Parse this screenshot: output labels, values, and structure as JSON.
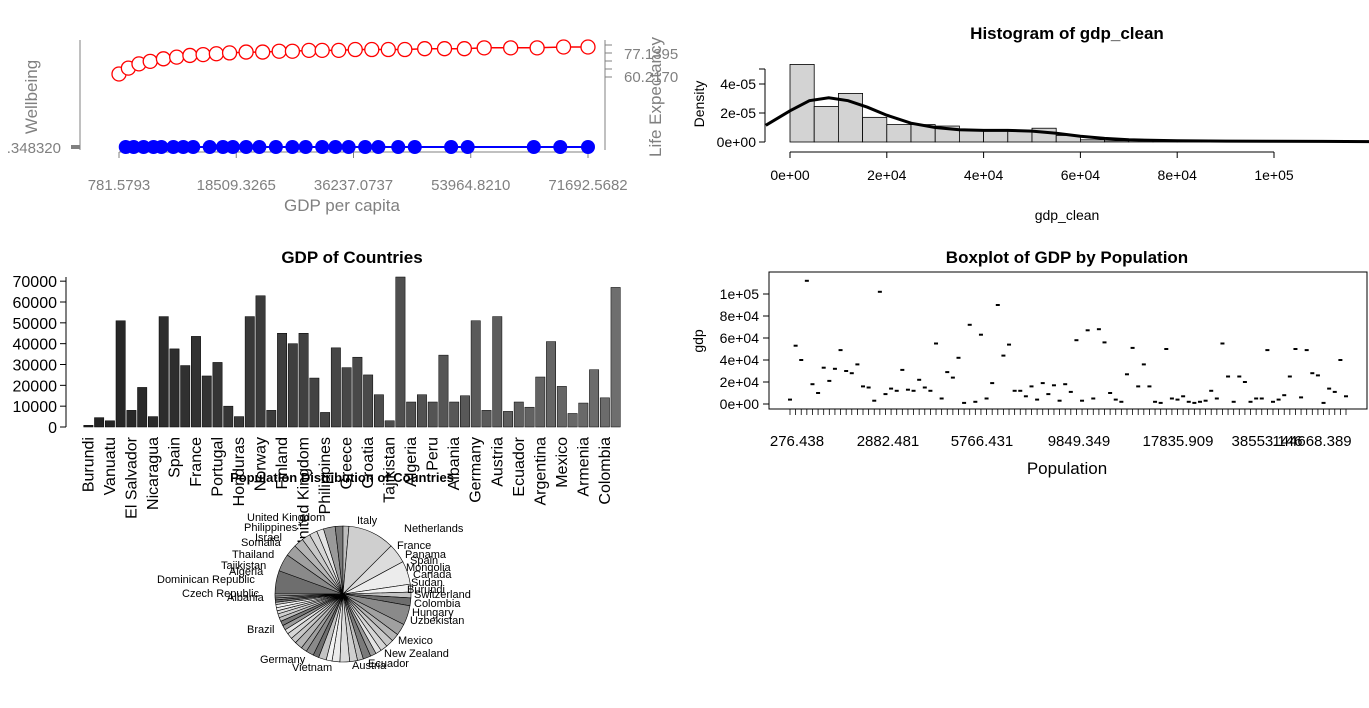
{
  "chart_data": [
    {
      "type": "line",
      "title": "",
      "xlabel": "GDP per capita",
      "ylabel_left": "Wellbeing",
      "ylabel_right": "Life Expectancy",
      "x_ticks": [
        "781.5793",
        "18509.3265",
        "36237.0737",
        "53964.8210",
        "71692.5682"
      ],
      "x_tick_values": [
        781.5793,
        18509.3265,
        36237.0737,
        53964.821,
        71692.5682
      ],
      "xlim": [
        781.5793,
        76000
      ],
      "left_ticks": [
        ".348320"
      ],
      "right_ticks": [
        "77.1395",
        "60.2170"
      ],
      "series": [
        {
          "name": "",
          "color": "#ff0000",
          "x": [
            781,
            2200,
            3800,
            5500,
            7500,
            9500,
            11500,
            13500,
            15500,
            17500,
            20000,
            22500,
            25000,
            27000,
            29500,
            31500,
            34000,
            36500,
            39000,
            41500,
            44000,
            47000,
            50000,
            53000,
            56000,
            60000,
            64000,
            68000,
            71692
          ],
          "y": [
            62.5,
            66.0,
            68.5,
            70.0,
            71.5,
            72.5,
            73.5,
            74.0,
            74.5,
            75.0,
            75.5,
            75.5,
            76.0,
            76.0,
            76.5,
            76.5,
            76.5,
            77.0,
            77.0,
            77.0,
            77.0,
            77.5,
            77.5,
            77.5,
            78.0,
            78.0,
            78.0,
            78.5,
            78.5
          ]
        },
        {
          "name": "",
          "color": "#0000ff",
          "x": [
            1800,
            3000,
            4500,
            6000,
            7200,
            9000,
            10500,
            12000,
            14500,
            16500,
            18000,
            20000,
            22000,
            24500,
            27000,
            29000,
            31500,
            33500,
            35500,
            38000,
            40000,
            43000,
            45500,
            51000,
            53500,
            63500,
            67500,
            71692
          ],
          "y": [
            0.348,
            0.348,
            0.348,
            0.348,
            0.348,
            0.348,
            0.348,
            0.348,
            0.348,
            0.348,
            0.348,
            0.348,
            0.348,
            0.348,
            0.348,
            0.348,
            0.348,
            0.348,
            0.348,
            0.348,
            0.348,
            0.348,
            0.348,
            0.348,
            0.348,
            0.348,
            0.348,
            0.348
          ]
        }
      ]
    },
    {
      "type": "histogram",
      "title": "Histogram of gdp_clean",
      "xlabel": "gdp_clean",
      "ylabel": "Density",
      "x_ticks": [
        "0e+00",
        "2e+04",
        "4e+04",
        "6e+04",
        "8e+04",
        "1e+05"
      ],
      "x_tick_values": [
        0,
        20000,
        40000,
        60000,
        80000,
        100000
      ],
      "y_ticks": [
        "0e+00",
        "2e-05",
        "4e-05"
      ],
      "y_tick_values": [
        0,
        2e-05,
        4e-05
      ],
      "xlim": [
        -5000,
        120000
      ],
      "bin_width": 5000,
      "bin_starts": [
        0,
        5000,
        10000,
        15000,
        20000,
        25000,
        30000,
        35000,
        40000,
        45000,
        50000,
        55000,
        60000,
        65000,
        70000,
        75000,
        80000,
        85000,
        90000,
        95000,
        100000,
        105000,
        110000,
        115000
      ],
      "density": [
        5.35e-05,
        2.45e-05,
        3.35e-05,
        1.7e-05,
        1.2e-05,
        1.2e-05,
        1.1e-05,
        8e-06,
        7.5e-06,
        7.5e-06,
        9.5e-06,
        4.5e-06,
        1.5e-06,
        8e-07,
        1.2e-06,
        6e-07,
        8e-07,
        5e-07,
        6e-07,
        6e-07,
        8e-07,
        4e-07,
        4e-07,
        4e-07
      ],
      "density_curve_x": [
        -5000,
        0,
        4000,
        8000,
        12000,
        16000,
        20000,
        25000,
        30000,
        35000,
        40000,
        45000,
        50000,
        55000,
        60000,
        65000,
        70000,
        80000,
        90000,
        100000,
        110000,
        120000
      ],
      "density_curve_y": [
        1.15e-05,
        2.15e-05,
        2.85e-05,
        3.05e-05,
        2.85e-05,
        2.4e-05,
        1.85e-05,
        1.3e-05,
        1e-05,
        8.5e-06,
        8e-06,
        8e-06,
        7.5e-06,
        6e-06,
        4e-06,
        2.5e-06,
        1.5e-06,
        8e-07,
        6e-07,
        5e-07,
        4e-07,
        3e-07
      ]
    },
    {
      "type": "bar",
      "title": "GDP of Countries",
      "y_ticks": [
        "0",
        "10000",
        "20000",
        "30000",
        "40000",
        "50000",
        "60000",
        "70000"
      ],
      "y_tick_values": [
        0,
        10000,
        20000,
        30000,
        40000,
        50000,
        60000,
        70000
      ],
      "ylim": [
        0,
        72000
      ],
      "labeled_categories": [
        "Burundi",
        "Vanuatu",
        "El Salvador",
        "Nicaragua",
        "Spain",
        "France",
        "Portugal",
        "Honduras",
        "Norway",
        "Finland",
        "United Kingdom",
        "Philippines",
        "Greece",
        "Croatia",
        "Tajikistan",
        "Algeria",
        "Peru",
        "Albania",
        "Germany",
        "Austria",
        "Ecuador",
        "Argentina",
        "Mexico",
        "Armenia",
        "Colombia"
      ],
      "values": [
        800,
        4500,
        3000,
        51000,
        8000,
        19000,
        5000,
        53000,
        37500,
        29500,
        43500,
        24500,
        31000,
        10000,
        5000,
        53000,
        63000,
        8000,
        45000,
        40000,
        45000,
        23500,
        7000,
        38000,
        28500,
        33500,
        25000,
        15500,
        3000,
        72000,
        12000,
        15500,
        12000,
        34500,
        12000,
        15000,
        51000,
        8000,
        53000,
        7500,
        12000,
        9500,
        24000,
        41000,
        19500,
        6500,
        11500,
        27500,
        14000,
        67000
      ]
    },
    {
      "type": "scatter",
      "title": "Boxplot of GDP by Population",
      "xlabel": "Population",
      "ylabel": "gdp",
      "x_tick_labels": [
        "276.438",
        "2882.481",
        "5766.431",
        "9849.349",
        "17835.909",
        "38553.146",
        "144668.389"
      ],
      "y_ticks": [
        "0e+00",
        "2e+04",
        "4e+04",
        "6e+04",
        "8e+04",
        "1e+05"
      ],
      "y_tick_values": [
        0,
        20000,
        40000,
        60000,
        80000,
        100000
      ],
      "ylim": [
        -5000,
        120000
      ],
      "category_count": 100,
      "values": [
        4000,
        53000,
        40000,
        112000,
        18000,
        10000,
        33000,
        21000,
        32000,
        49000,
        30000,
        28000,
        36000,
        16000,
        15000,
        3000,
        102000,
        9000,
        14000,
        12000,
        31000,
        13000,
        12000,
        22000,
        15000,
        12000,
        55000,
        5000,
        29000,
        24000,
        42000,
        1000,
        72000,
        2000,
        63000,
        5000,
        19000,
        90000,
        44000,
        54000,
        12000,
        12000,
        7000,
        16000,
        4000,
        19000,
        9000,
        17000,
        3000,
        18000,
        11000,
        58000,
        3000,
        67000,
        5000,
        68000,
        56000,
        10000,
        4000,
        2000,
        27000,
        51000,
        16000,
        36000,
        16000,
        2000,
        1000,
        50000,
        5000,
        4000,
        7000,
        2000,
        1000,
        2000,
        3000,
        12000,
        5000,
        55000,
        25000,
        2000,
        25000,
        20000,
        2000,
        5000,
        5000,
        49000,
        2000,
        4000,
        8000,
        25000,
        50000,
        6000,
        49000,
        28000,
        26000,
        1000,
        14000,
        11000,
        40000,
        7000
      ]
    },
    {
      "type": "pie",
      "title": "Population Distribution of Countries",
      "labels": [
        "United Kingdom",
        "Philippines",
        "Israel",
        "Somalia",
        "Thailand",
        "Tajikistan",
        "Algeria",
        "Dominican Republic",
        "Czech Republic",
        "Albania",
        "Brazil",
        "Germany",
        "Vietnam",
        "Austria",
        "Ecuador",
        "New Zealand",
        "Mexico",
        "Uzbekistan",
        "Hungary",
        "Colombia",
        "Switzerland",
        "Burundi",
        "Sudan",
        "France",
        "Panama",
        "Spain",
        "Italy",
        "Netherlands",
        "Mongolia",
        "Canada"
      ],
      "slice_fractions": [
        0.06,
        0.045,
        0.03,
        0.025,
        0.022,
        0.02,
        0.018,
        0.03,
        0.02,
        0.015,
        0.12,
        0.05,
        0.06,
        0.02,
        0.015,
        0.02,
        0.05,
        0.03,
        0.02,
        0.02,
        0.018,
        0.015,
        0.015,
        0.02,
        0.015,
        0.02,
        0.025,
        0.02,
        0.015,
        0.02,
        0.015,
        0.02,
        0.015,
        0.02,
        0.015,
        0.015,
        0.012,
        0.012,
        0.012,
        0.01,
        0.01,
        0.008,
        0.008,
        0.008,
        0.006,
        0.006,
        0.005,
        0.005,
        0.005
      ]
    }
  ]
}
